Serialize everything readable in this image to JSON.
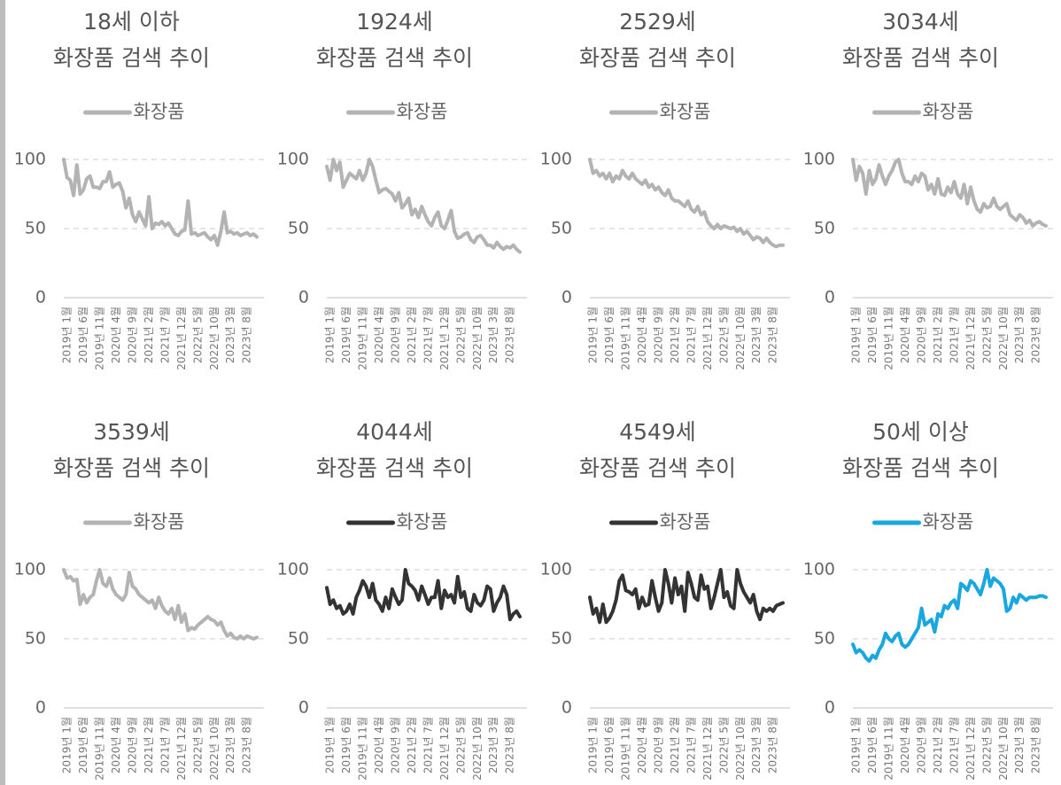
{
  "chart_data": [
    {
      "type": "line",
      "title": "18세 이하",
      "subtitle": "화장품 검색 추이",
      "categories": [
        "2019년 1월",
        null,
        null,
        null,
        null,
        "2019년 6월",
        null,
        null,
        null,
        null,
        "2019년 11월",
        null,
        null,
        null,
        null,
        "2020년 4월",
        null,
        null,
        null,
        null,
        "2020년 9월",
        null,
        null,
        null,
        null,
        "2021년 2월",
        null,
        null,
        null,
        null,
        "2021년 7월",
        null,
        null,
        null,
        null,
        "2021년 12월",
        null,
        null,
        null,
        null,
        "2022년 5월",
        null,
        null,
        null,
        null,
        "2022년 10월",
        null,
        null,
        null,
        null,
        "2023년 3월",
        null,
        null,
        null,
        null,
        "2023년 8월",
        null,
        null,
        null,
        null
      ],
      "series": [
        {
          "name": "화장품",
          "color": "#b3b3b3",
          "values": [
            100,
            87,
            85,
            74,
            96,
            75,
            78,
            86,
            88,
            80,
            80,
            79,
            84,
            84,
            91,
            80,
            82,
            83,
            77,
            65,
            72,
            60,
            55,
            62,
            57,
            52,
            73,
            50,
            54,
            53,
            55,
            52,
            54,
            50,
            46,
            45,
            48,
            49,
            70,
            46,
            47,
            45,
            46,
            47,
            44,
            42,
            45,
            38,
            48,
            62,
            47,
            48,
            46,
            47,
            45,
            46,
            47,
            45,
            46,
            44
          ]
        }
      ],
      "ylim": [
        0,
        100
      ],
      "yticks": [
        0,
        50,
        100
      ],
      "grid": true,
      "legend": "top"
    },
    {
      "type": "line",
      "title": "1924세",
      "subtitle": "화장품 검색 추이",
      "categories": [
        "2019년 1월",
        null,
        null,
        null,
        null,
        "2019년 6월",
        null,
        null,
        null,
        null,
        "2019년 11월",
        null,
        null,
        null,
        null,
        "2020년 4월",
        null,
        null,
        null,
        null,
        "2020년 9월",
        null,
        null,
        null,
        null,
        "2021년 2월",
        null,
        null,
        null,
        null,
        "2021년 7월",
        null,
        null,
        null,
        null,
        "2021년 12월",
        null,
        null,
        null,
        null,
        "2022년 5월",
        null,
        null,
        null,
        null,
        "2022년 10월",
        null,
        null,
        null,
        null,
        "2023년 3월",
        null,
        null,
        null,
        null,
        "2023년 8월",
        null,
        null,
        null,
        null
      ],
      "series": [
        {
          "name": "화장품",
          "color": "#b3b3b3",
          "values": [
            95,
            85,
            100,
            92,
            98,
            80,
            85,
            90,
            88,
            86,
            92,
            85,
            90,
            100,
            95,
            85,
            76,
            78,
            79,
            77,
            75,
            70,
            76,
            65,
            68,
            72,
            60,
            64,
            58,
            66,
            60,
            55,
            52,
            58,
            62,
            52,
            50,
            56,
            63,
            48,
            43,
            44,
            46,
            47,
            42,
            40,
            44,
            45,
            42,
            38,
            38,
            36,
            40,
            37,
            35,
            37,
            36,
            38,
            35,
            33
          ]
        }
      ],
      "ylim": [
        0,
        100
      ],
      "yticks": [
        0,
        50,
        100
      ],
      "grid": true,
      "legend": "top"
    },
    {
      "type": "line",
      "title": "2529세",
      "subtitle": "화장품 검색 추이",
      "categories": [
        "2019년 1월",
        null,
        null,
        null,
        null,
        "2019년 6월",
        null,
        null,
        null,
        null,
        "2019년 11월",
        null,
        null,
        null,
        null,
        "2020년 4월",
        null,
        null,
        null,
        null,
        "2020년 9월",
        null,
        null,
        null,
        null,
        "2021년 2월",
        null,
        null,
        null,
        null,
        "2021년 7월",
        null,
        null,
        null,
        null,
        "2021년 12월",
        null,
        null,
        null,
        null,
        "2022년 5월",
        null,
        null,
        null,
        null,
        "2022년 10월",
        null,
        null,
        null,
        null,
        "2023년 3월",
        null,
        null,
        null,
        null,
        "2023년 8월",
        null,
        null,
        null,
        null
      ],
      "series": [
        {
          "name": "화장품",
          "color": "#b3b3b3",
          "values": [
            100,
            90,
            92,
            88,
            90,
            86,
            90,
            84,
            88,
            86,
            92,
            88,
            86,
            90,
            86,
            84,
            82,
            85,
            80,
            82,
            78,
            80,
            76,
            74,
            78,
            72,
            70,
            70,
            68,
            66,
            70,
            64,
            62,
            66,
            60,
            62,
            55,
            52,
            50,
            53,
            50,
            52,
            51,
            50,
            51,
            48,
            50,
            46,
            48,
            45,
            42,
            44,
            43,
            40,
            43,
            40,
            38,
            37,
            38,
            38
          ]
        }
      ],
      "ylim": [
        0,
        100
      ],
      "yticks": [
        0,
        50,
        100
      ],
      "grid": true,
      "legend": "top"
    },
    {
      "type": "line",
      "title": "3034세",
      "subtitle": "화장품 검색 추이",
      "categories": [
        "2019년 1월",
        null,
        null,
        null,
        null,
        "2019년 6월",
        null,
        null,
        null,
        null,
        "2019년 11월",
        null,
        null,
        null,
        null,
        "2020년 4월",
        null,
        null,
        null,
        null,
        "2020년 9월",
        null,
        null,
        null,
        null,
        "2021년 2월",
        null,
        null,
        null,
        null,
        "2021년 7월",
        null,
        null,
        null,
        null,
        "2021년 12월",
        null,
        null,
        null,
        null,
        "2022년 5월",
        null,
        null,
        null,
        null,
        "2022년 10월",
        null,
        null,
        null,
        null,
        "2023년 3월",
        null,
        null,
        null,
        null,
        "2023년 8월",
        null,
        null,
        null,
        null
      ],
      "series": [
        {
          "name": "화장품",
          "color": "#b3b3b3",
          "values": [
            100,
            85,
            95,
            90,
            75,
            92,
            82,
            86,
            96,
            88,
            82,
            88,
            92,
            98,
            100,
            90,
            84,
            84,
            82,
            88,
            84,
            90,
            88,
            78,
            82,
            75,
            86,
            75,
            74,
            80,
            76,
            84,
            75,
            72,
            82,
            68,
            80,
            70,
            64,
            62,
            68,
            65,
            66,
            72,
            66,
            64,
            66,
            68,
            60,
            58,
            56,
            60,
            58,
            54,
            56,
            52,
            54,
            55,
            53,
            52
          ]
        }
      ],
      "ylim": [
        0,
        100
      ],
      "yticks": [
        0,
        50,
        100
      ],
      "grid": true,
      "legend": "top"
    },
    {
      "type": "line",
      "title": "3539세",
      "subtitle": "화장품 검색 추이",
      "categories": [
        "2019년 1월",
        null,
        null,
        null,
        null,
        "2019년 6월",
        null,
        null,
        null,
        null,
        "2019년 11월",
        null,
        null,
        null,
        null,
        "2020년 4월",
        null,
        null,
        null,
        null,
        "2020년 9월",
        null,
        null,
        null,
        null,
        "2021년 2월",
        null,
        null,
        null,
        null,
        "2021년 7월",
        null,
        null,
        null,
        null,
        "2021년 12월",
        null,
        null,
        null,
        null,
        "2022년 5월",
        null,
        null,
        null,
        null,
        "2022년 10월",
        null,
        null,
        null,
        null,
        "2023년 3월",
        null,
        null,
        null,
        null,
        "2023년 8월",
        null,
        null,
        null,
        null
      ],
      "series": [
        {
          "name": "화장품",
          "color": "#b3b3b3",
          "values": [
            100,
            94,
            95,
            92,
            93,
            75,
            82,
            76,
            80,
            82,
            92,
            100,
            90,
            88,
            94,
            86,
            82,
            80,
            78,
            82,
            98,
            88,
            86,
            82,
            80,
            78,
            76,
            78,
            72,
            80,
            74,
            70,
            68,
            72,
            64,
            74,
            62,
            68,
            56,
            58,
            57,
            60,
            62,
            64,
            66,
            64,
            63,
            60,
            62,
            56,
            52,
            54,
            51,
            50,
            52,
            50,
            52,
            51,
            50,
            51
          ]
        }
      ],
      "ylim": [
        0,
        100
      ],
      "yticks": [
        0,
        50,
        100
      ],
      "grid": true,
      "legend": "top"
    },
    {
      "type": "line",
      "title": "4044세",
      "subtitle": "화장품 검색 추이",
      "categories": [
        "2019년 1월",
        null,
        null,
        null,
        null,
        "2019년 6월",
        null,
        null,
        null,
        null,
        "2019년 11월",
        null,
        null,
        null,
        null,
        "2020년 4월",
        null,
        null,
        null,
        null,
        "2020년 9월",
        null,
        null,
        null,
        null,
        "2021년 2월",
        null,
        null,
        null,
        null,
        "2021년 7월",
        null,
        null,
        null,
        null,
        "2021년 12월",
        null,
        null,
        null,
        null,
        "2022년 5월",
        null,
        null,
        null,
        null,
        "2022년 10월",
        null,
        null,
        null,
        null,
        "2023년 3월",
        null,
        null,
        null,
        null,
        "2023년 8월",
        null,
        null,
        null,
        null
      ],
      "series": [
        {
          "name": "화장품",
          "color": "#333333",
          "values": [
            87,
            75,
            78,
            72,
            74,
            68,
            70,
            75,
            68,
            80,
            85,
            92,
            88,
            80,
            90,
            78,
            75,
            70,
            80,
            72,
            86,
            80,
            75,
            78,
            100,
            90,
            88,
            85,
            78,
            88,
            82,
            75,
            80,
            80,
            92,
            72,
            85,
            80,
            82,
            76,
            95,
            80,
            84,
            72,
            70,
            82,
            76,
            74,
            78,
            88,
            86,
            70,
            76,
            80,
            88,
            82,
            64,
            68,
            70,
            66
          ]
        }
      ],
      "ylim": [
        0,
        100
      ],
      "yticks": [
        0,
        50,
        100
      ],
      "grid": true,
      "legend": "top"
    },
    {
      "type": "line",
      "title": "4549세",
      "subtitle": "화장품 검색 추이",
      "categories": [
        "2019년 1월",
        null,
        null,
        null,
        null,
        "2019년 6월",
        null,
        null,
        null,
        null,
        "2019년 11월",
        null,
        null,
        null,
        null,
        "2020년 4월",
        null,
        null,
        null,
        null,
        "2020년 9월",
        null,
        null,
        null,
        null,
        "2021년 2월",
        null,
        null,
        null,
        null,
        "2021년 7월",
        null,
        null,
        null,
        null,
        "2021년 12월",
        null,
        null,
        null,
        null,
        "2022년 5월",
        null,
        null,
        null,
        null,
        "2022년 10월",
        null,
        null,
        null,
        null,
        "2023년 3월",
        null,
        null,
        null,
        null,
        "2023년 8월",
        null,
        null,
        null,
        null
      ],
      "series": [
        {
          "name": "화장품",
          "color": "#333333",
          "values": [
            80,
            68,
            72,
            62,
            75,
            62,
            65,
            70,
            78,
            92,
            96,
            85,
            84,
            82,
            86,
            72,
            80,
            74,
            75,
            92,
            80,
            70,
            76,
            100,
            90,
            76,
            94,
            82,
            88,
            70,
            98,
            90,
            80,
            78,
            96,
            86,
            88,
            72,
            80,
            90,
            100,
            80,
            84,
            74,
            72,
            100,
            90,
            84,
            80,
            76,
            82,
            70,
            64,
            72,
            70,
            72,
            70,
            74,
            75,
            76
          ]
        }
      ],
      "ylim": [
        0,
        100
      ],
      "yticks": [
        0,
        50,
        100
      ],
      "grid": true,
      "legend": "top"
    },
    {
      "type": "line",
      "title": "50세 이상",
      "subtitle": "화장품 검색 추이",
      "categories": [
        "2019년 1월",
        null,
        null,
        null,
        null,
        "2019년 6월",
        null,
        null,
        null,
        null,
        "2019년 11월",
        null,
        null,
        null,
        null,
        "2020년 4월",
        null,
        null,
        null,
        null,
        "2020년 9월",
        null,
        null,
        null,
        null,
        "2021년 2월",
        null,
        null,
        null,
        null,
        "2021년 7월",
        null,
        null,
        null,
        null,
        "2021년 12월",
        null,
        null,
        null,
        null,
        "2022년 5월",
        null,
        null,
        null,
        null,
        "2022년 10월",
        null,
        null,
        null,
        null,
        "2023년 3월",
        null,
        null,
        null,
        null,
        "2023년 8월",
        null,
        null,
        null,
        null
      ],
      "series": [
        {
          "name": "화장품",
          "color": "#1aa7e0",
          "values": [
            46,
            40,
            42,
            40,
            36,
            34,
            38,
            36,
            42,
            46,
            54,
            50,
            48,
            52,
            54,
            46,
            44,
            46,
            50,
            54,
            58,
            72,
            60,
            62,
            64,
            55,
            68,
            66,
            74,
            72,
            76,
            78,
            72,
            90,
            88,
            85,
            92,
            90,
            86,
            82,
            90,
            100,
            88,
            94,
            92,
            90,
            86,
            70,
            72,
            80,
            76,
            82,
            80,
            78,
            80,
            80,
            80,
            81,
            81,
            80
          ]
        }
      ],
      "ylim": [
        0,
        100
      ],
      "yticks": [
        0,
        50,
        100
      ],
      "grid": true,
      "legend": "top"
    }
  ]
}
